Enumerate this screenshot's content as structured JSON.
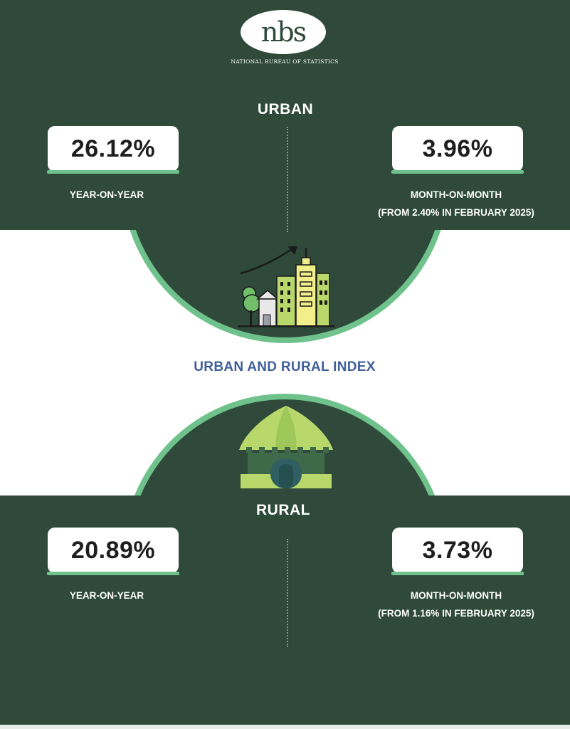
{
  "header": {
    "logo_text": "nbs",
    "agency_name": "NATIONAL BUREAU OF STATISTICS"
  },
  "urban": {
    "title": "URBAN",
    "year_on_year": {
      "value": "26.12%",
      "label": "YEAR-ON-YEAR"
    },
    "month_on_month": {
      "value": "3.96%",
      "label": "MONTH-ON-MONTH",
      "note": "(FROM 2.40% IN FEBRUARY 2025)"
    }
  },
  "index_title": "URBAN AND RURAL INDEX",
  "rural": {
    "title": "RURAL",
    "year_on_year": {
      "value": "20.89%",
      "label": "YEAR-ON-YEAR"
    },
    "month_on_month": {
      "value": "3.73%",
      "label": "MONTH-ON-MONTH",
      "note": "(FROM 1.16% IN FEBRUARY 2025)"
    }
  },
  "icons": {
    "urban": "city-growth-icon",
    "rural": "hut-icon"
  },
  "colors": {
    "panel": "#2f4a3a",
    "accent": "#6fc28b",
    "index_title": "#3f5f9a"
  }
}
